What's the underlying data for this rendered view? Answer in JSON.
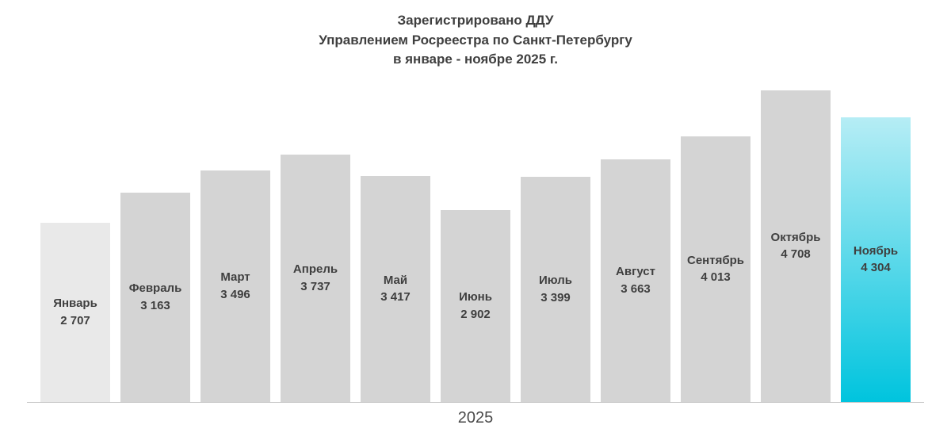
{
  "chart_data": {
    "type": "bar",
    "title": "Зарегистрировано ДДУ\nУправлением Росреестра по Санкт-Петербургу\nв январе - ноябре 2025 г.",
    "xlabel": "2025",
    "ylabel": "",
    "categories": [
      "Январь",
      "Февраль",
      "Март",
      "Апрель",
      "Май",
      "Июнь",
      "Июль",
      "Август",
      "Сентябрь",
      "Октябрь",
      "Ноябрь"
    ],
    "values": [
      2707,
      3163,
      3496,
      3737,
      3417,
      2902,
      3399,
      3663,
      4013,
      4708,
      4304
    ],
    "value_labels": [
      "2 707",
      "3 163",
      "3 496",
      "3 737",
      "3 417",
      "2 902",
      "3 399",
      "3 663",
      "4 013",
      "4 708",
      "4 304"
    ],
    "ylim": [
      0,
      4708
    ],
    "grid": false,
    "legend": "none",
    "light_index": 0,
    "highlight_index": 10,
    "colors": {
      "first_bar": "#e9e9e9",
      "bar": "#d4d4d4",
      "highlight_top": "#b6edf5",
      "highlight_bottom": "#00c4de",
      "label_text": "#3f3f3f",
      "title_text": "#3f3f3f",
      "axis_line": "#c6c6c6",
      "xlabel_text": "#4a4a4a"
    }
  }
}
